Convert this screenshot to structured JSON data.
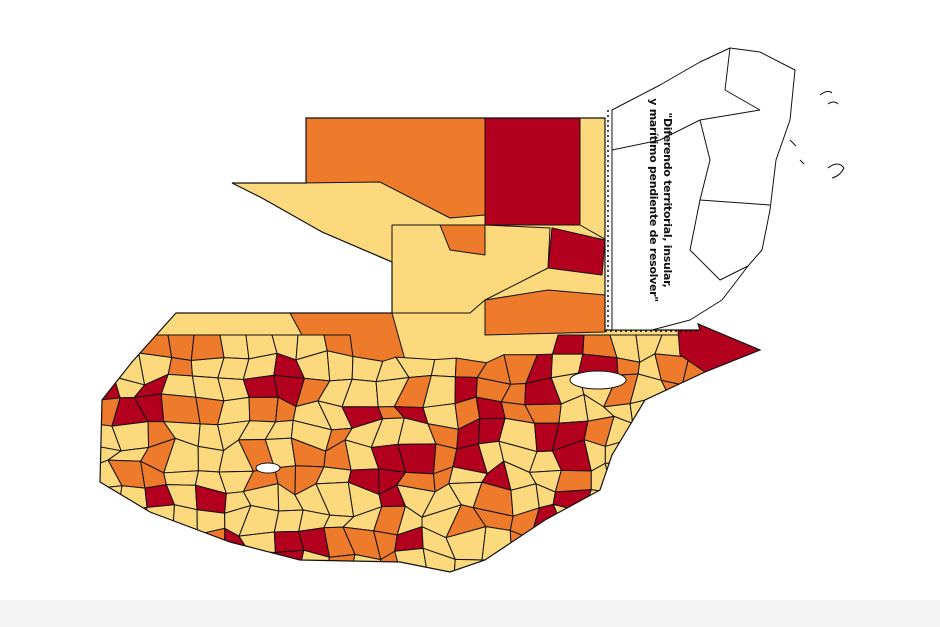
{
  "annotation": {
    "lines": [
      "\"Diferendo territorial, insular,",
      "y marítimo pendiente de resolver\""
    ]
  }
}
